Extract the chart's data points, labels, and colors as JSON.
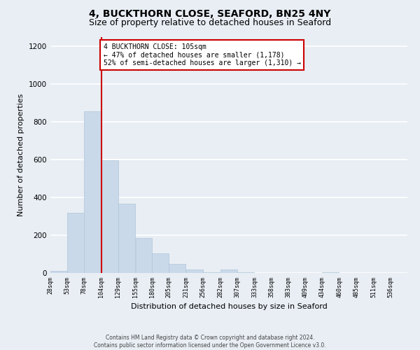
{
  "title1": "4, BUCKTHORN CLOSE, SEAFORD, BN25 4NY",
  "title2": "Size of property relative to detached houses in Seaford",
  "xlabel": "Distribution of detached houses by size in Seaford",
  "ylabel": "Number of detached properties",
  "bar_edges": [
    28,
    53,
    78,
    104,
    129,
    155,
    180,
    205,
    231,
    256,
    282,
    307,
    333,
    358,
    383,
    409,
    434,
    460,
    485,
    511,
    536
  ],
  "bar_heights": [
    10,
    320,
    855,
    595,
    365,
    185,
    105,
    47,
    20,
    5,
    20,
    5,
    0,
    0,
    0,
    0,
    5,
    0,
    0,
    0,
    0
  ],
  "bar_color": "#c9d9ea",
  "bar_edge_color": "#b0c4d8",
  "vline_color": "#cc0000",
  "annotation_title": "4 BUCKTHORN CLOSE: 105sqm",
  "annotation_line1": "← 47% of detached houses are smaller (1,178)",
  "annotation_line2": "52% of semi-detached houses are larger (1,310) →",
  "annotation_box_color": "#cc0000",
  "ylim": [
    0,
    1250
  ],
  "yticks": [
    0,
    200,
    400,
    600,
    800,
    1000,
    1200
  ],
  "footer1": "Contains HM Land Registry data © Crown copyright and database right 2024.",
  "footer2": "Contains public sector information licensed under the Open Government Licence v3.0.",
  "bg_color": "#e8eef4",
  "plot_bg_color": "#e8eef4",
  "grid_color": "#ffffff",
  "title1_fontsize": 10,
  "title2_fontsize": 9,
  "xlabel_fontsize": 8,
  "ylabel_fontsize": 8,
  "tick_fontsize": 6,
  "tick_labels": [
    "28sqm",
    "53sqm",
    "78sqm",
    "104sqm",
    "129sqm",
    "155sqm",
    "180sqm",
    "205sqm",
    "231sqm",
    "256sqm",
    "282sqm",
    "307sqm",
    "333sqm",
    "358sqm",
    "383sqm",
    "409sqm",
    "434sqm",
    "460sqm",
    "485sqm",
    "511sqm",
    "536sqm"
  ]
}
